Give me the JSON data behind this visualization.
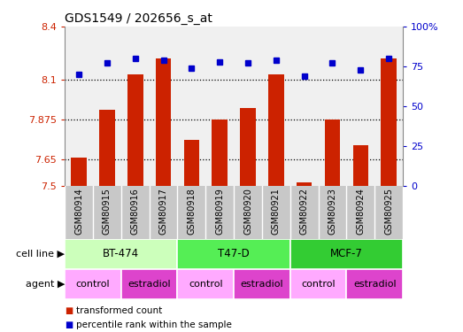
{
  "title": "GDS1549 / 202656_s_at",
  "samples": [
    "GSM80914",
    "GSM80915",
    "GSM80916",
    "GSM80917",
    "GSM80918",
    "GSM80919",
    "GSM80920",
    "GSM80921",
    "GSM80922",
    "GSM80923",
    "GSM80924",
    "GSM80925"
  ],
  "red_values": [
    7.66,
    7.93,
    8.13,
    8.22,
    7.76,
    7.875,
    7.94,
    8.13,
    7.52,
    7.875,
    7.73,
    8.22
  ],
  "blue_values": [
    70,
    77,
    80,
    79,
    74,
    78,
    77,
    79,
    69,
    77,
    73,
    80
  ],
  "y_min": 7.5,
  "y_max": 8.4,
  "y_ticks": [
    7.5,
    7.65,
    7.875,
    8.1,
    8.4
  ],
  "y_tick_labels": [
    "7.5",
    "7.65",
    "7.875",
    "8.1",
    "8.4"
  ],
  "y2_ticks": [
    0,
    25,
    50,
    75,
    100
  ],
  "y2_tick_labels": [
    "0",
    "25",
    "50",
    "75",
    "100%"
  ],
  "dotted_lines": [
    7.65,
    7.875,
    8.1
  ],
  "cell_lines": [
    {
      "label": "BT-474",
      "start": 0,
      "end": 4,
      "color": "#ccffbb"
    },
    {
      "label": "T47-D",
      "start": 4,
      "end": 8,
      "color": "#55ee55"
    },
    {
      "label": "MCF-7",
      "start": 8,
      "end": 12,
      "color": "#33cc33"
    }
  ],
  "agents": [
    {
      "label": "control",
      "start": 0,
      "end": 2,
      "color": "#ffaaff"
    },
    {
      "label": "estradiol",
      "start": 2,
      "end": 4,
      "color": "#dd44cc"
    },
    {
      "label": "control",
      "start": 4,
      "end": 6,
      "color": "#ffaaff"
    },
    {
      "label": "estradiol",
      "start": 6,
      "end": 8,
      "color": "#dd44cc"
    },
    {
      "label": "control",
      "start": 8,
      "end": 10,
      "color": "#ffaaff"
    },
    {
      "label": "estradiol",
      "start": 10,
      "end": 12,
      "color": "#dd44cc"
    }
  ],
  "bar_color": "#cc2200",
  "dot_color": "#0000cc",
  "bg_color": "#ffffff",
  "axis_color_left": "#cc2200",
  "axis_color_right": "#0000cc",
  "chart_bg": "#f0f0f0",
  "sample_bg": "#c8c8c8",
  "legend_red": "transformed count",
  "legend_blue": "percentile rank within the sample"
}
